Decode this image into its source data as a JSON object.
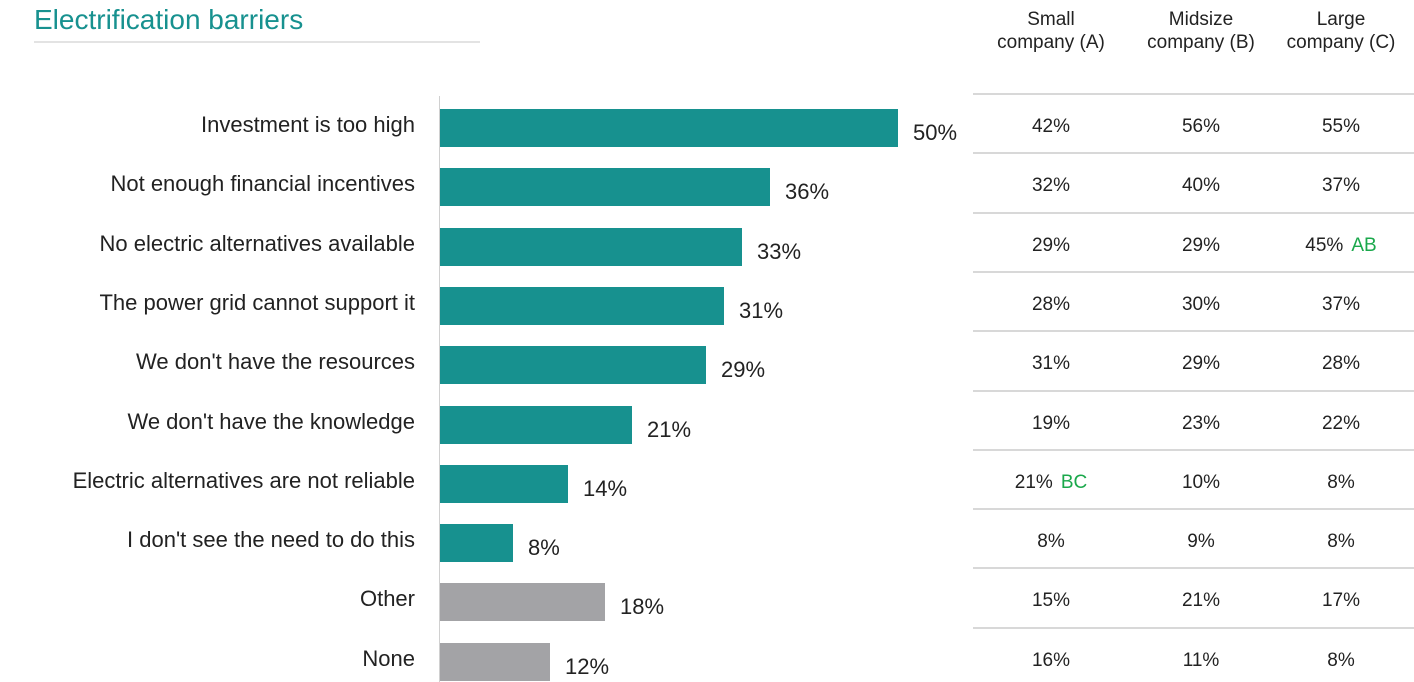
{
  "colors": {
    "accent": "#17918f",
    "other": "#a3a3a6",
    "significance": "#1aa84b"
  },
  "chart_data": {
    "type": "bar",
    "orientation": "horizontal",
    "title": "Electrification barriers",
    "unit": "%",
    "xlim": [
      0,
      50
    ],
    "categories": [
      "Investment is too high",
      "Not enough financial incentives",
      "No electric alternatives available",
      "The power grid cannot support it",
      "We don't have the resources",
      "We don't have the knowledge",
      "Electric alternatives are not reliable",
      "I don't see the need to do this",
      "Other",
      "None"
    ],
    "values": [
      50,
      36,
      33,
      31,
      29,
      21,
      14,
      8,
      18,
      12
    ],
    "value_labels": [
      "50%",
      "36%",
      "33%",
      "31%",
      "29%",
      "21%",
      "14%",
      "8%",
      "18%",
      "12%"
    ],
    "bar_colors": [
      "accent",
      "accent",
      "accent",
      "accent",
      "accent",
      "accent",
      "accent",
      "accent",
      "other",
      "other"
    ],
    "table": {
      "columns": [
        {
          "line1": "Small",
          "line2": "company (A)"
        },
        {
          "line1": "Midsize",
          "line2": "company (B)"
        },
        {
          "line1": "Large",
          "line2": "company (C)"
        }
      ],
      "rows": [
        [
          {
            "v": "42%",
            "sig": ""
          },
          {
            "v": "56%",
            "sig": ""
          },
          {
            "v": "55%",
            "sig": ""
          }
        ],
        [
          {
            "v": "32%",
            "sig": ""
          },
          {
            "v": "40%",
            "sig": ""
          },
          {
            "v": "37%",
            "sig": ""
          }
        ],
        [
          {
            "v": "29%",
            "sig": ""
          },
          {
            "v": "29%",
            "sig": ""
          },
          {
            "v": "45%",
            "sig": "AB"
          }
        ],
        [
          {
            "v": "28%",
            "sig": ""
          },
          {
            "v": "30%",
            "sig": ""
          },
          {
            "v": "37%",
            "sig": ""
          }
        ],
        [
          {
            "v": "31%",
            "sig": ""
          },
          {
            "v": "29%",
            "sig": ""
          },
          {
            "v": "28%",
            "sig": ""
          }
        ],
        [
          {
            "v": "19%",
            "sig": ""
          },
          {
            "v": "23%",
            "sig": ""
          },
          {
            "v": "22%",
            "sig": ""
          }
        ],
        [
          {
            "v": "21%",
            "sig": "BC"
          },
          {
            "v": "10%",
            "sig": ""
          },
          {
            "v": "8%",
            "sig": ""
          }
        ],
        [
          {
            "v": "8%",
            "sig": ""
          },
          {
            "v": "9%",
            "sig": ""
          },
          {
            "v": "8%",
            "sig": ""
          }
        ],
        [
          {
            "v": "15%",
            "sig": ""
          },
          {
            "v": "21%",
            "sig": ""
          },
          {
            "v": "17%",
            "sig": ""
          }
        ],
        [
          {
            "v": "16%",
            "sig": ""
          },
          {
            "v": "11%",
            "sig": ""
          },
          {
            "v": "8%",
            "sig": ""
          }
        ]
      ]
    }
  }
}
